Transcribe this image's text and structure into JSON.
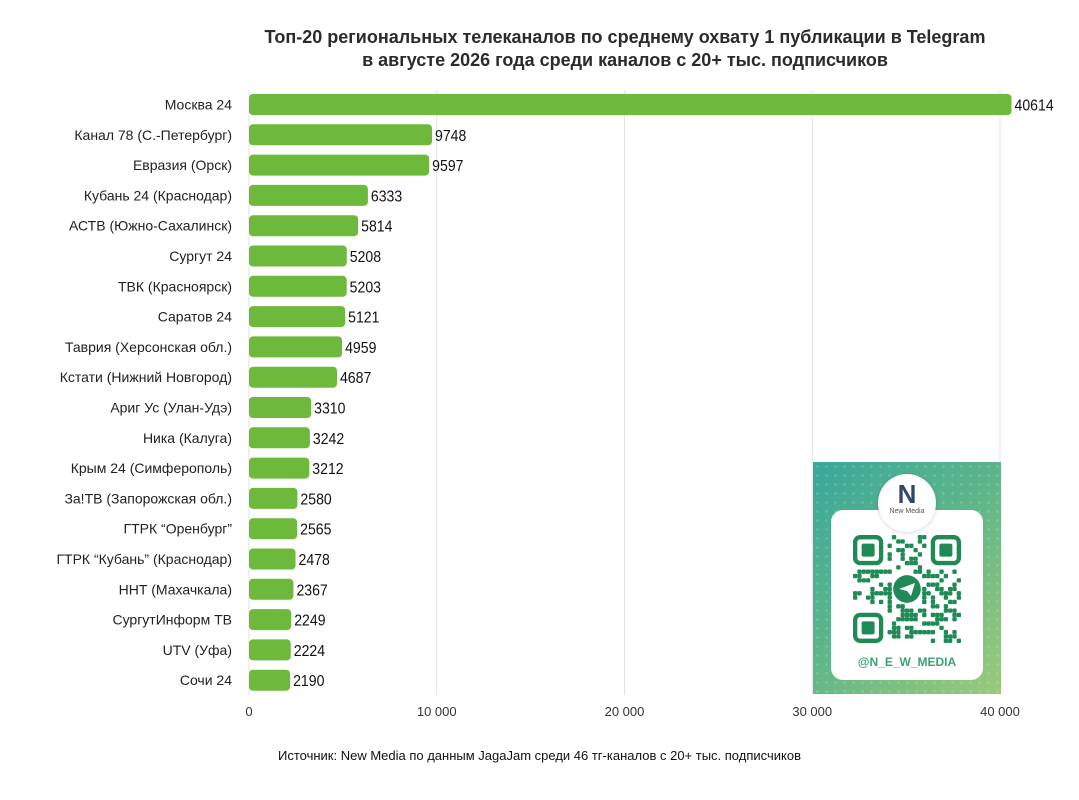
{
  "chart_data": {
    "type": "bar",
    "orientation": "horizontal",
    "title_lines": [
      "Топ-20 региональных телеканалов по среднему охвату 1 публикации в Telegram",
      "в августе 2026 года среди каналов с 20+ тыс. подписчиков"
    ],
    "categories": [
      "Москва 24",
      "Канал 78 (С.-Петербург)",
      "Евразия (Орск)",
      "Кубань 24 (Краснодар)",
      "АСТВ (Южно-Сахалинск)",
      "Сургут 24",
      "ТВК (Красноярск)",
      "Саратов 24",
      "Таврия (Херсонская обл.)",
      "Кстати (Нижний Новгород)",
      "Ариг Ус (Улан-Удэ)",
      "Ника (Калуга)",
      "Крым 24 (Симферополь)",
      "За!ТВ (Запорожская обл.)",
      "ГТРК “Оренбург”",
      "ГТРК “Кубань” (Краснодар)",
      "ННТ (Махачкала)",
      "СургутИнформ ТВ",
      "UTV (Уфа)",
      "Сочи 24"
    ],
    "values": [
      40614,
      9748,
      9597,
      6333,
      5814,
      5208,
      5203,
      5121,
      4959,
      4687,
      3310,
      3242,
      3212,
      2580,
      2565,
      2478,
      2367,
      2249,
      2224,
      2190
    ],
    "xlim": [
      0,
      40000
    ],
    "xticks": [
      0,
      10000,
      20000,
      30000,
      40000
    ],
    "xtick_labels": [
      "0",
      "10 000",
      "20 000",
      "30 000",
      "40 000"
    ],
    "grid": "vertical",
    "bar_color": "#6cb93c",
    "grid_color": "#e2e2e2"
  },
  "source_note": "Источник: New Media по данным JagaJam среди 46 тг-каналов с 20+ тыс. подписчиков",
  "promo": {
    "logo_text": "New Media",
    "logo_letter": "N",
    "handle": "@N_E_W_MEDIA",
    "qr_icon": "qr-code-icon",
    "qr_color": "#1f8a55"
  }
}
